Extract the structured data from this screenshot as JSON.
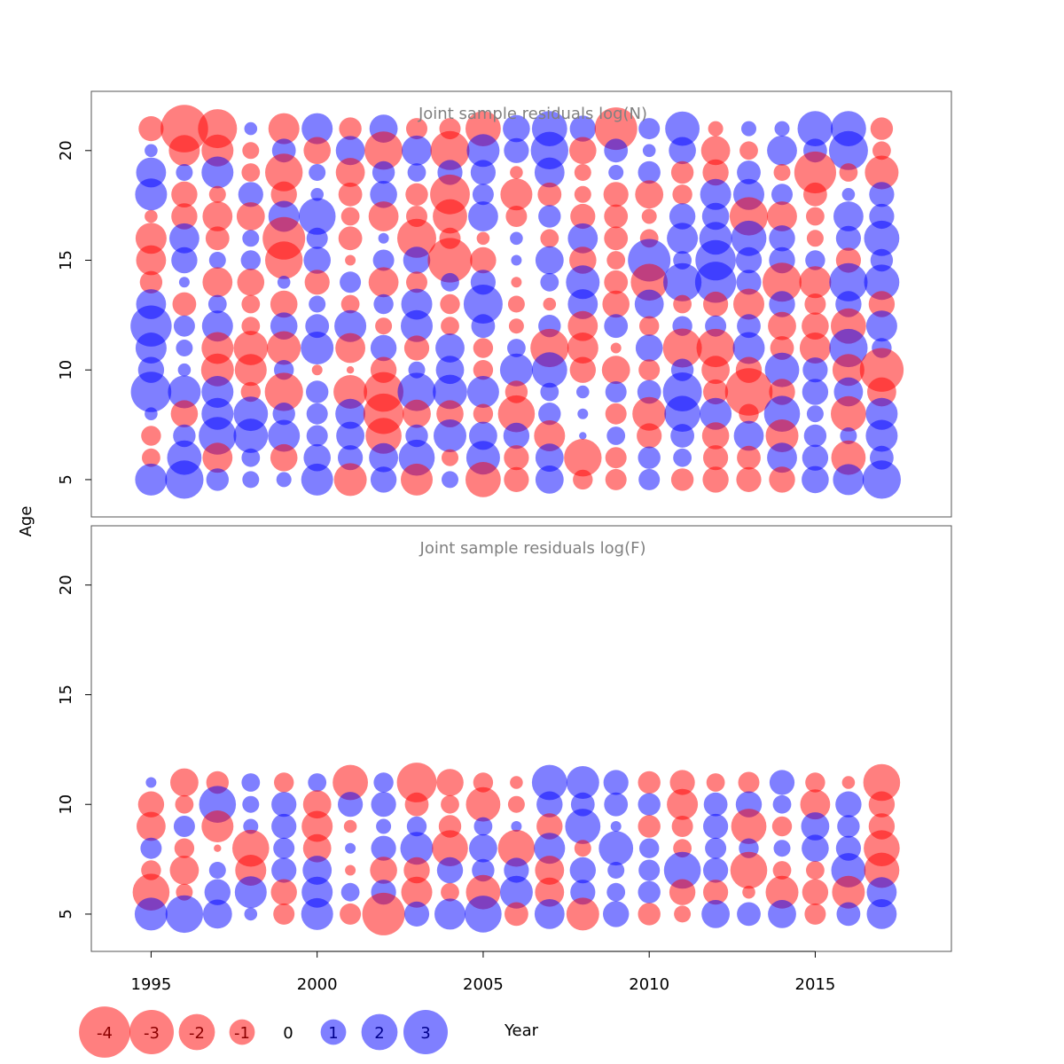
{
  "chart_data": {
    "type": "scatter",
    "subtype": "bubble",
    "xlabel": "Year",
    "ylabel": "Age",
    "xlim": [
      1993.2,
      2019.1
    ],
    "ylim": [
      3.3,
      22.7
    ],
    "xticks": [
      "1995",
      "2000",
      "2005",
      "2010",
      "2015"
    ],
    "yticks": [
      "5",
      "10",
      "15",
      "20"
    ],
    "colors": {
      "negative": "#ff0000",
      "positive": "#0000ff",
      "opacity": 0.5
    },
    "legend": [
      {
        "value": -4,
        "label": "-4"
      },
      {
        "value": -3,
        "label": "-3"
      },
      {
        "value": -2,
        "label": "-2"
      },
      {
        "value": -1,
        "label": "-1"
      },
      {
        "value": 0,
        "label": "0"
      },
      {
        "value": 1,
        "label": "1"
      },
      {
        "value": 2,
        "label": "2"
      },
      {
        "value": 3,
        "label": "3"
      }
    ],
    "years": [
      1995,
      1996,
      1997,
      1998,
      1999,
      2000,
      2001,
      2002,
      2003,
      2004,
      2005,
      2006,
      2007,
      2008,
      2009,
      2010,
      2011,
      2012,
      2013,
      2014,
      2015,
      2016,
      2017
    ],
    "panels": [
      {
        "title": "Joint sample residuals log(N)",
        "ages": [
          21,
          20,
          19,
          18,
          17,
          16,
          15,
          14,
          13,
          12,
          11,
          10,
          9,
          8,
          7,
          6,
          5
        ],
        "residuals": [
          [
            -1.1,
            -4.0,
            -2.7,
            0.3,
            -1.7,
            1.7,
            -0.9,
            1.4,
            -0.8,
            -0.8,
            -2.2,
            1.3,
            2.2,
            1.2,
            -3.2,
            0.8,
            2.1,
            -0.4,
            0.4,
            0.4,
            2.2,
            2.2,
            -0.9
          ],
          [
            0.3,
            -1.7,
            -1.8,
            -0.5,
            1.0,
            -1.3,
            1.5,
            -2.6,
            1.6,
            -2.7,
            1.9,
            1.1,
            2.5,
            -1.3,
            1.0,
            0.3,
            1.3,
            -1.5,
            -0.6,
            1.6,
            1.0,
            2.7,
            -0.6
          ],
          [
            1.6,
            0.5,
            1.8,
            -0.6,
            -2.5,
            0.5,
            -1.5,
            0.9,
            0.6,
            1.1,
            1.1,
            -0.3,
            1.6,
            -0.5,
            0.4,
            0.9,
            -0.9,
            -1.2,
            1.0,
            -0.5,
            -3.1,
            -0.6,
            -2.0
          ],
          [
            1.8,
            -1.2,
            -0.5,
            1.1,
            -1.2,
            0.3,
            -1.0,
            1.3,
            -0.9,
            -2.8,
            0.8,
            -1.8,
            -1.0,
            -0.5,
            -1.1,
            -1.4,
            -0.7,
            1.7,
            1.7,
            0.8,
            -1.0,
            0.3,
            1.1
          ],
          [
            -0.3,
            -1.2,
            -1.6,
            -1.4,
            1.7,
            2.4,
            -0.6,
            -1.6,
            -0.8,
            -2.1,
            1.6,
            -0.8,
            0.9,
            -1.1,
            -1.0,
            -0.4,
            1.2,
            1.3,
            -2.6,
            -1.6,
            -0.6,
            1.6,
            1.1
          ],
          [
            -1.7,
            1.6,
            -1.0,
            0.5,
            -3.2,
            0.8,
            -1.0,
            0.2,
            -2.7,
            -0.8,
            -0.3,
            0.3,
            -0.6,
            1.6,
            -1.0,
            -0.6,
            1.7,
            1.9,
            2.2,
            1.2,
            -0.5,
            1.1,
            2.2
          ],
          [
            -1.6,
            1.2,
            0.5,
            0.7,
            -2.5,
            1.3,
            -0.2,
            0.8,
            1.3,
            -3.5,
            -1.2,
            0.2,
            1.4,
            -1.3,
            -0.6,
            3.2,
            0.6,
            2.9,
            1.2,
            1.2,
            0.7,
            -1.1,
            0.9
          ],
          [
            -0.9,
            0.2,
            -1.6,
            -1.3,
            0.3,
            -1.1,
            0.8,
            -1.6,
            -0.8,
            0.6,
            1.1,
            -0.2,
            0.6,
            2.0,
            -1.0,
            -2.4,
            2.6,
            3.0,
            1.1,
            -2.7,
            -1.8,
            2.6,
            2.2
          ],
          [
            1.6,
            -1.0,
            0.6,
            -0.6,
            -1.3,
            0.5,
            -0.6,
            0.7,
            1.7,
            -0.7,
            2.7,
            -0.5,
            -0.3,
            1.6,
            -1.3,
            1.5,
            -0.6,
            -1.1,
            -1.7,
            1.2,
            -0.8,
            1.2,
            -1.2
          ],
          [
            3.0,
            0.8,
            1.7,
            -0.6,
            1.3,
            1.0,
            1.8,
            -0.5,
            1.8,
            -0.6,
            1.0,
            -0.4,
            0.9,
            -1.6,
            1.0,
            -0.7,
            0.7,
            0.8,
            1.0,
            -1.4,
            -1.3,
            -2.2,
            1.7
          ],
          [
            1.7,
            0.5,
            -1.8,
            -2.1,
            -2.0,
            1.9,
            -1.6,
            1.2,
            -1.1,
            1.5,
            -0.7,
            0.6,
            -2.6,
            -1.7,
            -0.2,
            1.3,
            -2.7,
            -2.6,
            1.8,
            -1.0,
            -1.7,
            2.6,
            0.7
          ],
          [
            1.2,
            0.3,
            -1.9,
            -1.8,
            0.7,
            -0.2,
            -0.1,
            -1.2,
            0.5,
            1.4,
            -0.7,
            1.9,
            2.2,
            -1.2,
            -1.4,
            -0.8,
            0.9,
            -1.4,
            -1.2,
            2.1,
            1.1,
            -1.8,
            -3.4
          ],
          [
            2.9,
            1.9,
            1.8,
            -0.7,
            -2.6,
            0.9,
            -2.0,
            -2.8,
            2.6,
            2.1,
            1.8,
            -0.9,
            0.6,
            0.3,
            0.8,
            1.0,
            2.7,
            -1.1,
            -4.0,
            -1.2,
            1.2,
            1.5,
            -1.5
          ],
          [
            0.3,
            -1.3,
            1.8,
            2.1,
            0.9,
            0.8,
            1.6,
            -2.9,
            -1.4,
            -1.3,
            -0.7,
            -2.4,
            0.9,
            0.2,
            -0.8,
            -2.0,
            2.3,
            1.8,
            -0.7,
            2.3,
            0.5,
            -2.2,
            1.8
          ],
          [
            -0.7,
            0.9,
            2.5,
            2.1,
            1.8,
            0.8,
            1.4,
            -2.3,
            0.9,
            1.9,
            1.4,
            1.2,
            -1.7,
            0.1,
            0.6,
            -1.1,
            1.0,
            -1.3,
            1.6,
            -1.9,
            0.9,
            0.5,
            1.8
          ],
          [
            -0.6,
            2.1,
            -1.6,
            0.6,
            -1.3,
            1.3,
            1.1,
            1.5,
            2.3,
            -0.5,
            2.0,
            -1.1,
            1.4,
            -2.5,
            -0.8,
            0.9,
            0.6,
            -1.1,
            -1.0,
            1.6,
            1.2,
            -2.1,
            1.0
          ],
          [
            1.8,
            2.6,
            0.9,
            0.5,
            0.4,
            1.8,
            -1.9,
            1.2,
            -1.8,
            0.5,
            -2.2,
            -1.1,
            1.4,
            -0.7,
            -0.8,
            0.8,
            -0.9,
            -1.2,
            -1.1,
            -1.2,
            1.3,
            1.7,
            2.6
          ]
        ]
      },
      {
        "title": "Joint sample residuals log(F)",
        "ages": [
          11,
          10,
          9,
          8,
          7,
          6,
          5
        ],
        "residuals": [
          [
            0.2,
            -1.4,
            -0.9,
            0.6,
            -0.7,
            0.6,
            -2.2,
            0.7,
            -2.8,
            -1.3,
            -0.7,
            -0.3,
            2.2,
            1.9,
            1.1,
            -0.9,
            -1.1,
            -0.6,
            -0.8,
            1.1,
            -0.7,
            -0.3,
            -2.4
          ],
          [
            -1.2,
            -0.6,
            2.4,
            0.5,
            1.1,
            -1.4,
            1.1,
            1.1,
            -1.0,
            -0.6,
            -2.1,
            -0.5,
            1.2,
            1.0,
            1.0,
            0.9,
            -1.7,
            1.0,
            1.2,
            0.6,
            -1.6,
            1.2,
            -1.2
          ],
          [
            -1.5,
            0.8,
            -1.8,
            0.4,
            1.1,
            -1.7,
            -0.3,
            0.4,
            0.7,
            -0.9,
            0.6,
            0.2,
            -1.2,
            2.2,
            0.2,
            -0.9,
            -0.8,
            1.1,
            -2.2,
            -0.7,
            1.4,
            0.9,
            -1.2
          ],
          [
            0.8,
            -0.7,
            -0.1,
            -2.4,
            0.8,
            -1.4,
            0.2,
            1.1,
            1.9,
            -2.3,
            1.4,
            -2.4,
            1.7,
            -0.5,
            2.1,
            0.7,
            -0.6,
            0.8,
            0.7,
            0.5,
            1.3,
            1.1,
            -2.3
          ],
          [
            -0.7,
            -1.5,
            0.5,
            -1.7,
            1.1,
            1.5,
            -0.2,
            -1.3,
            -1.2,
            1.2,
            0.9,
            1.1,
            -1.5,
            1.2,
            0.5,
            0.8,
            2.4,
            1.1,
            -2.4,
            -0.6,
            -0.6,
            2.1,
            -2.2
          ],
          [
            -2.4,
            -0.5,
            1.2,
            1.8,
            -1.2,
            1.7,
            0.6,
            1.1,
            -1.7,
            -0.6,
            -2.1,
            1.9,
            -1.5,
            1.1,
            0.6,
            0.9,
            -1.2,
            -1.1,
            -0.3,
            -1.9,
            -1.2,
            -1.9,
            1.6
          ],
          [
            1.9,
            2.5,
            1.5,
            0.3,
            -0.8,
            1.8,
            -0.8,
            -3.2,
            1.1,
            1.7,
            2.4,
            -1.0,
            1.6,
            -1.9,
            1.2,
            -0.9,
            -0.5,
            1.4,
            1.0,
            1.4,
            -0.8,
            1.0,
            1.6
          ]
        ]
      }
    ]
  }
}
